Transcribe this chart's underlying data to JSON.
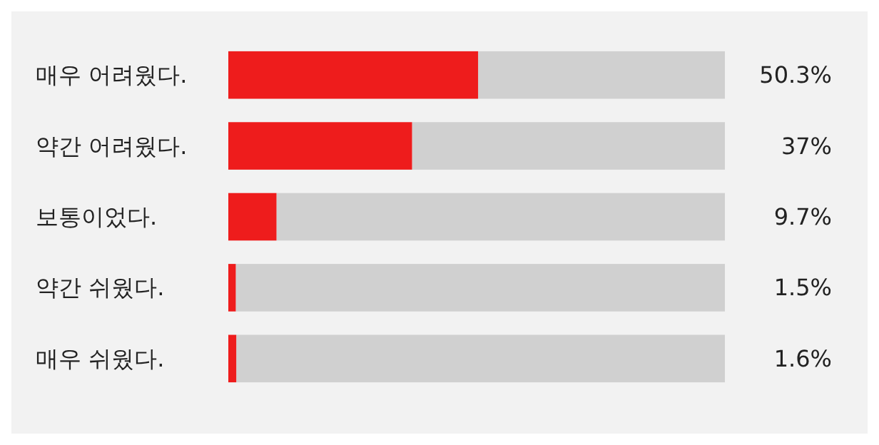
{
  "chart_data": {
    "type": "bar",
    "orientation": "horizontal",
    "categories": [
      "매우 어려웠다.",
      "약간 어려웠다.",
      "보통이었다.",
      "약간 쉬웠다.",
      "매우 쉬웠다."
    ],
    "values": [
      50.3,
      37,
      9.7,
      1.5,
      1.6
    ],
    "value_labels": [
      "50.3%",
      "37%",
      "9.7%",
      "1.5%",
      "1.6%"
    ],
    "color": "#ee1c1c",
    "xlim": [
      0,
      100
    ],
    "tick_labels": "y"
  }
}
